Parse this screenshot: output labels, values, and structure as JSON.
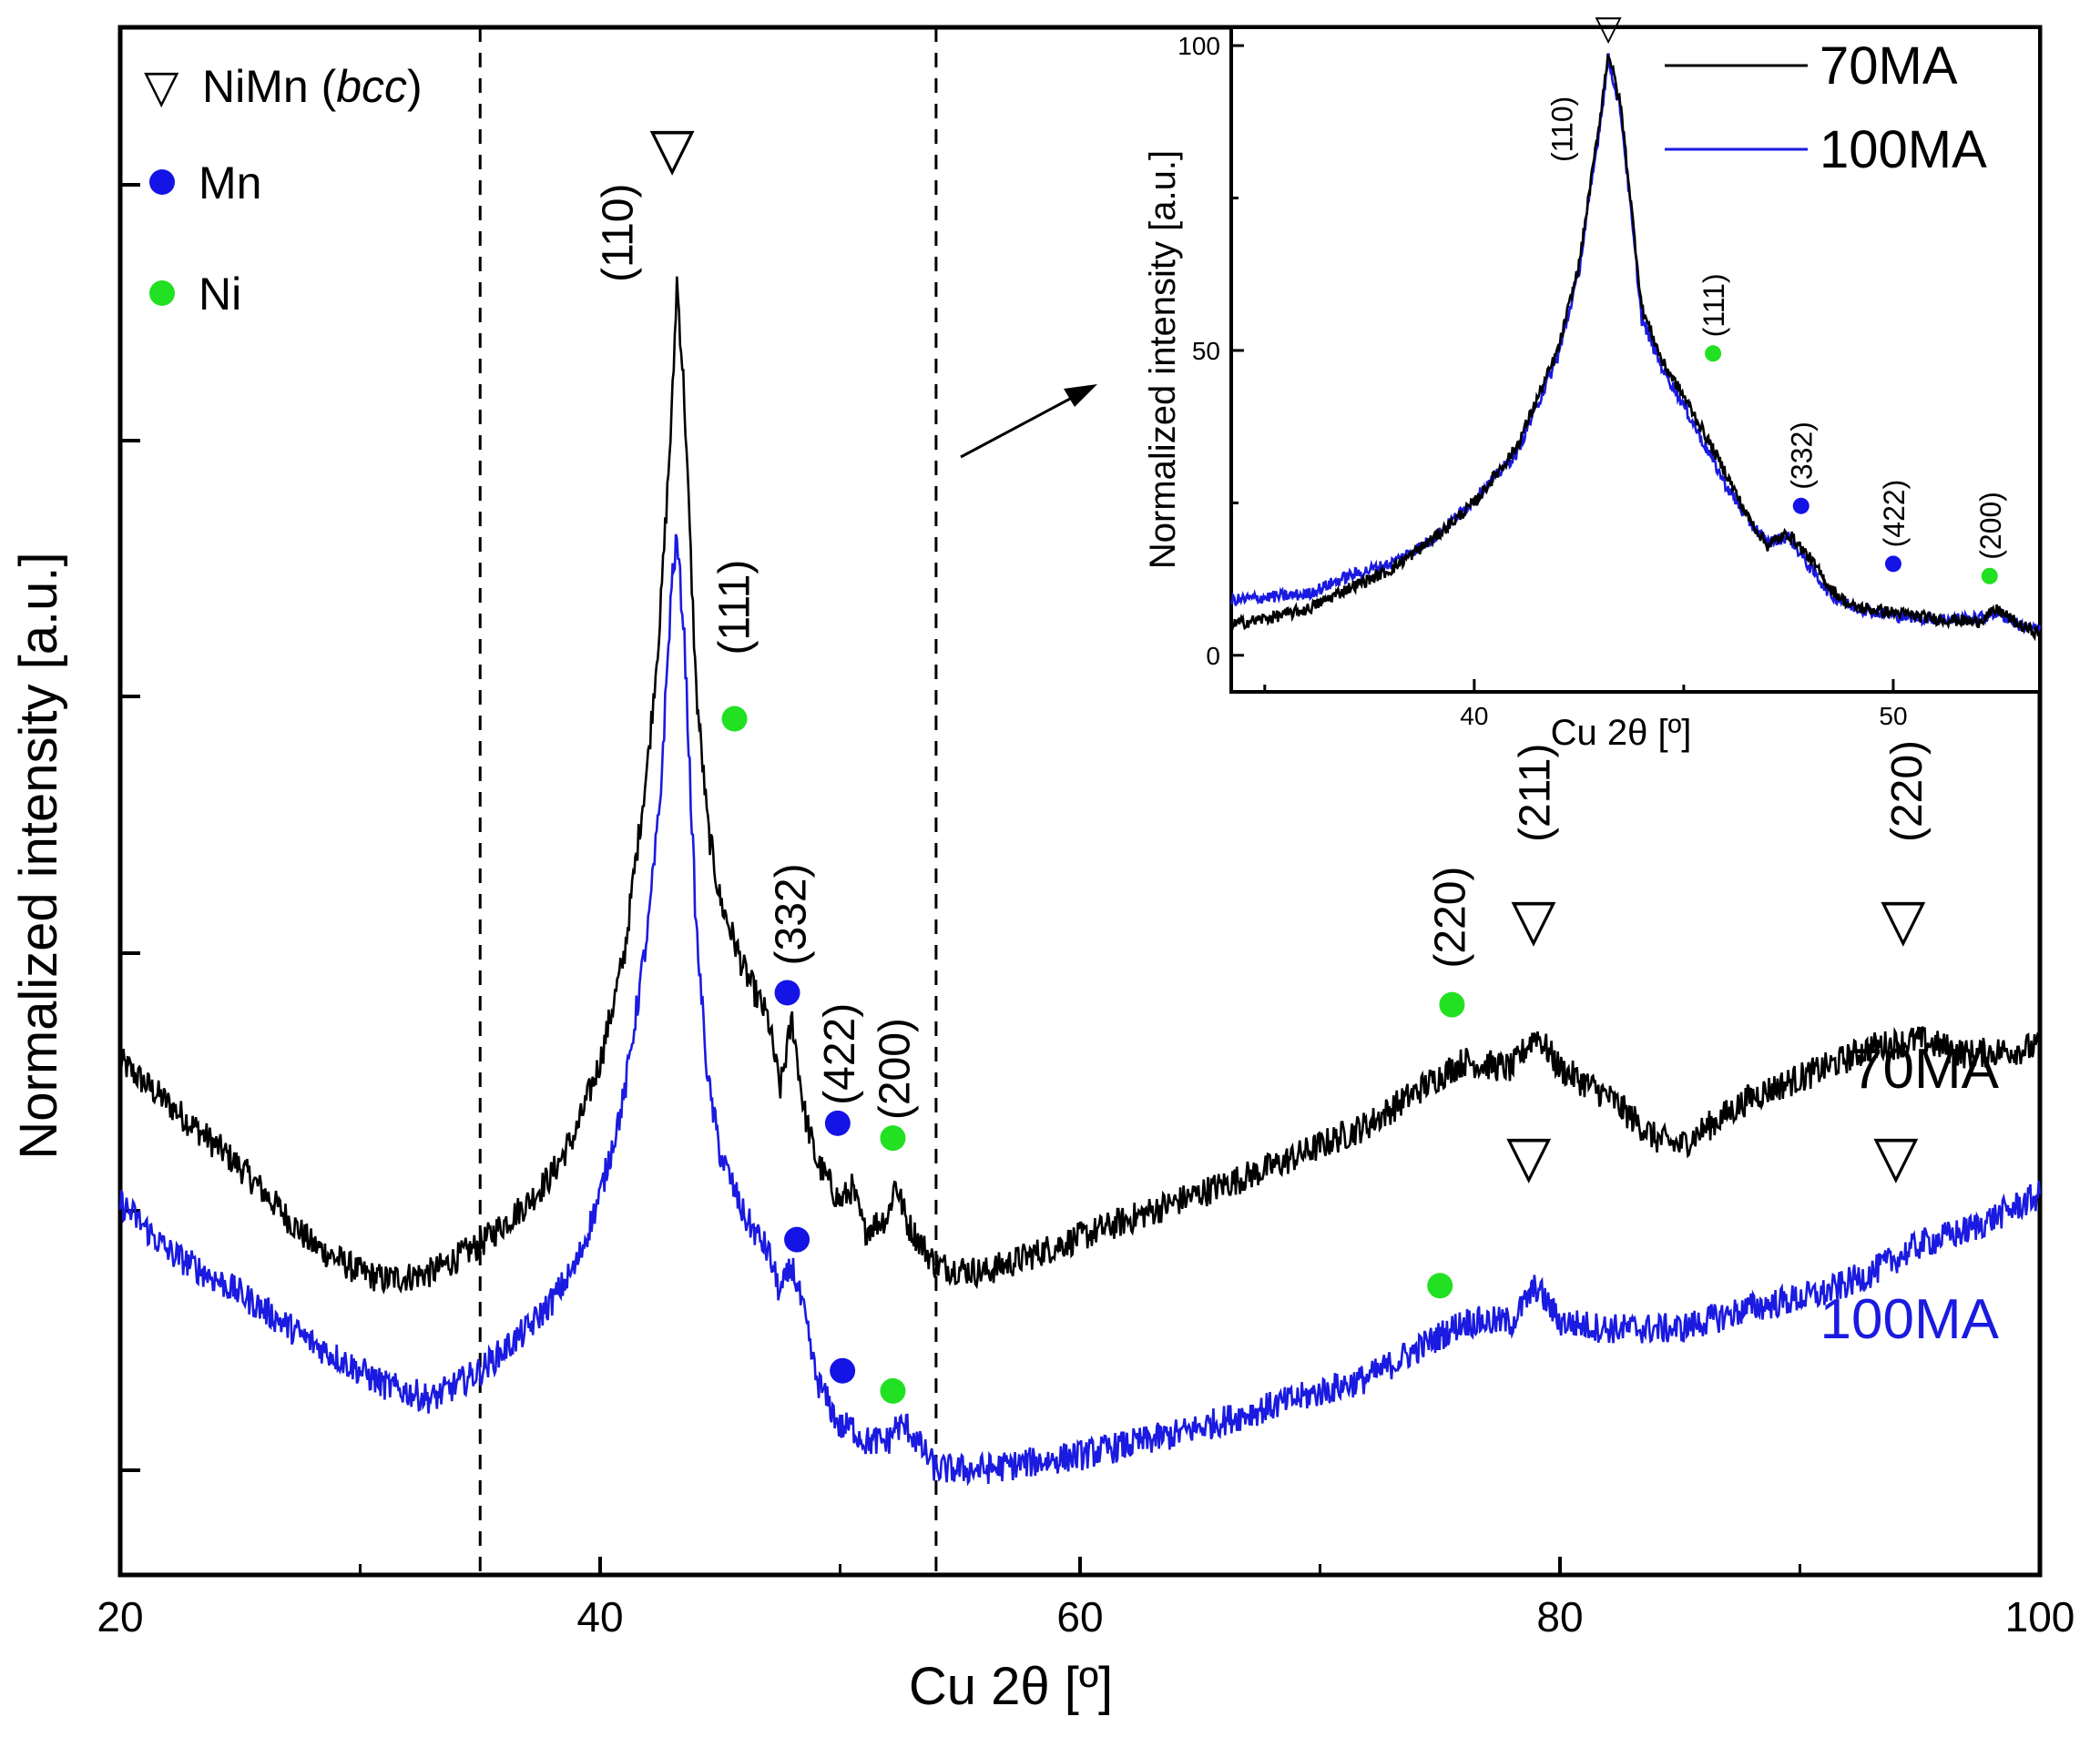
{
  "chart_data": [
    {
      "type": "line",
      "xlabel": "Cu 2θ [º]",
      "ylabel": "Normalized intensity [a.u.]",
      "xlim": [
        20,
        100
      ],
      "xticks": [
        20,
        40,
        60,
        80,
        100
      ],
      "ylim": [
        0,
        110
      ],
      "yticks_shown_labels": false,
      "vertical_dashed_lines": [
        35,
        54
      ],
      "legend_markers": [
        {
          "symbol": "▽",
          "label": "NiMn (",
          "label_italic": "bcc",
          "label_end": ")",
          "color": "#000000"
        },
        {
          "symbol": "dot",
          "label": "Mn",
          "color": "#1414e6"
        },
        {
          "symbol": "dot",
          "label": "Ni",
          "color": "#22e022"
        }
      ],
      "series": [
        {
          "name": "70MA",
          "color": "#000000",
          "x": [
            20,
            22,
            25,
            28,
            30,
            31,
            32,
            33,
            35,
            37,
            38,
            39,
            40,
            41,
            42,
            42.5,
            43,
            43.2,
            43.5,
            44,
            44.5,
            45,
            46,
            47,
            47.5,
            48,
            48.5,
            49,
            50,
            50.5,
            51,
            52,
            52.3,
            52.8,
            54,
            56,
            60,
            64,
            68,
            72,
            75,
            76,
            78,
            79,
            80,
            82,
            84,
            85,
            88,
            91,
            93,
            95,
            97,
            100
          ],
          "values": [
            36.5,
            33.5,
            29,
            23.5,
            21.5,
            21,
            21.2,
            21.5,
            23.5,
            26.5,
            28.5,
            31.5,
            36.5,
            44,
            58,
            68,
            83,
            92,
            84,
            63,
            53,
            48,
            43,
            39.5,
            34.5,
            39.5,
            33,
            29.5,
            26.5,
            27.5,
            24.5,
            25.5,
            28,
            25,
            22,
            21.5,
            24,
            26.5,
            29,
            32,
            35.5,
            36.5,
            36,
            38.5,
            36,
            34,
            31,
            30.5,
            34,
            36,
            37.5,
            38,
            37,
            37.5
          ]
        },
        {
          "name": "100MA",
          "color": "#1a1ae0",
          "x": [
            20,
            22,
            25,
            28,
            30,
            31,
            32,
            33,
            35,
            37,
            38,
            39,
            40,
            41,
            42,
            42.5,
            43,
            43.2,
            43.5,
            44,
            44.5,
            45,
            46,
            47,
            47.5,
            48,
            48.5,
            49,
            50,
            50.5,
            51,
            52,
            52.3,
            52.8,
            54,
            56,
            60,
            64,
            68,
            72,
            75,
            76,
            78,
            79,
            80,
            82,
            84,
            85,
            88,
            91,
            93,
            95,
            97,
            100
          ],
          "values": [
            26.5,
            23,
            20,
            16.5,
            14.5,
            13.5,
            13,
            12.5,
            14.5,
            17.5,
            19.5,
            22,
            27,
            34,
            46,
            55,
            71,
            73.5,
            67,
            46,
            35,
            30,
            25.5,
            23,
            20,
            22,
            18.5,
            14,
            10.5,
            10.5,
            9.5,
            9.5,
            10.5,
            10.5,
            7.5,
            7.5,
            8.5,
            10,
            12,
            14,
            17,
            18,
            18,
            20.5,
            18,
            17.5,
            17.5,
            17.5,
            19,
            20,
            21.5,
            23.5,
            24.5,
            27
          ]
        }
      ],
      "annotations": [
        {
          "text": "(110)",
          "x": 41.8,
          "series": "70MA"
        },
        {
          "text": "(111)",
          "x": 45.7,
          "series": "70MA",
          "marker": "Ni"
        },
        {
          "text": "(332)",
          "x": 47.8,
          "series": "70MA",
          "marker": "Mn"
        },
        {
          "text": "(422)",
          "x": 50.0,
          "series": "70MA",
          "marker": "Mn"
        },
        {
          "text": "(200)",
          "x": 52.3,
          "series": "70MA",
          "marker": "Ni"
        },
        {
          "text": "(220)",
          "x": 75.5,
          "series": "70MA",
          "marker": "Ni"
        },
        {
          "text": "(211)",
          "x": 79.2,
          "series": "70MA"
        },
        {
          "text": "(220)",
          "x": 94.3,
          "series": "70MA"
        }
      ],
      "series_text_labels": [
        {
          "text": "70MA",
          "color": "#000000"
        },
        {
          "text": "100MA",
          "color": "#1a1ae0"
        }
      ]
    },
    {
      "type": "line",
      "name": "inset",
      "xlabel": "Cu 2θ [º]",
      "ylabel": "Normalized intensity [a.u.]",
      "xlim": [
        34.2,
        53.5
      ],
      "xticks": [
        40,
        50
      ],
      "ylim": [
        -6,
        103
      ],
      "yticks": [
        0,
        50,
        100
      ],
      "series": [
        {
          "name": "70MA",
          "color": "#000000",
          "x": [
            34.2,
            35,
            36,
            37,
            38,
            39,
            40,
            41,
            42,
            42.5,
            43,
            43.2,
            43.5,
            44,
            44.5,
            45,
            46,
            46.5,
            47,
            47.5,
            48,
            48.5,
            49,
            50,
            51,
            52,
            52.5,
            53,
            53.5
          ],
          "values": [
            5,
            6,
            7.5,
            11,
            14,
            19,
            25,
            34,
            50,
            64,
            88,
            99,
            90,
            57,
            48,
            42.5,
            30,
            23,
            18,
            20,
            16,
            11,
            8,
            7,
            6,
            5.5,
            7.5,
            5,
            3.5
          ]
        },
        {
          "name": "100MA",
          "color": "#1a1ae0",
          "x": [
            34.2,
            35,
            36,
            37,
            38,
            39,
            40,
            41,
            42,
            42.5,
            43,
            43.2,
            43.5,
            44,
            44.5,
            45,
            46,
            46.5,
            47,
            47.5,
            48,
            48.5,
            49,
            50,
            51,
            52,
            52.5,
            53,
            53.5
          ],
          "values": [
            9,
            9.5,
            10,
            13,
            15,
            19,
            25.5,
            33,
            49,
            63,
            87,
            98,
            89,
            55,
            47,
            41,
            28,
            22.5,
            18.5,
            19.5,
            14.5,
            10,
            8,
            6.5,
            6,
            6,
            7,
            5,
            4
          ]
        }
      ],
      "annotations": [
        {
          "text": "(110)",
          "x": 42.6
        },
        {
          "text": "(111)",
          "x": 45.7,
          "marker": "Ni"
        },
        {
          "text": "(332)",
          "x": 47.8,
          "marker": "Mn"
        },
        {
          "text": "(422)",
          "x": 50.0,
          "marker": "Mn"
        },
        {
          "text": "(200)",
          "x": 52.3,
          "marker": "Ni"
        }
      ],
      "legend": {
        "position": "top-right",
        "entries": [
          "70MA",
          "100MA"
        ]
      }
    }
  ]
}
